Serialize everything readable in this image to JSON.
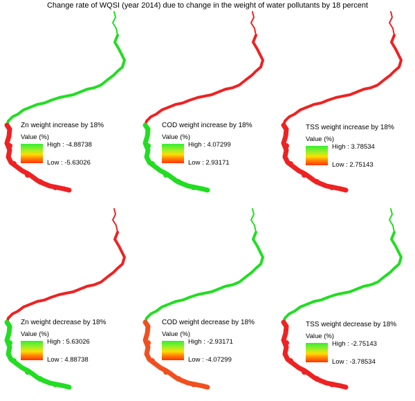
{
  "title": "Change rate of WQSI (year 2014) due to change in the weight of water pollutants by 18 percent",
  "colors": {
    "green": "#22dd22",
    "red": "#ee2222",
    "orange_red": "#f05020"
  },
  "panels": [
    {
      "legend_title": "Zn weight increase by 18%",
      "value_label": "Value (%)",
      "high": "High : -4.88738",
      "low": "Low : -5.63026",
      "north": "green",
      "south": "red",
      "gradient": "green-to-red"
    },
    {
      "legend_title": "COD weight increase by 18%",
      "value_label": "Value (%)",
      "high": "High : 4.07299",
      "low": "Low : 2.93171",
      "north": "red",
      "south": "green",
      "gradient": "green-to-red"
    },
    {
      "legend_title": "TSS weight increase by 18%",
      "value_label": "Value (%)",
      "high": "High : 3.78534",
      "low": "Low : 2.75143",
      "north": "red",
      "south": "red",
      "gradient": "green-to-red"
    },
    {
      "legend_title": "Zn weight decrease by 18%",
      "value_label": "Value (%)",
      "high": "High : 5.63026",
      "low": "Low : 4.88738",
      "north": "red",
      "south": "green",
      "gradient": "green-to-red"
    },
    {
      "legend_title": "COD weight decrease by 18%",
      "value_label": "Value (%)",
      "high": "High : -2.93171",
      "low": "Low : -4.07299",
      "north": "green",
      "south": "orange_red",
      "gradient": "green-to-red"
    },
    {
      "legend_title": "TSS weight decrease by 18%",
      "value_label": "Value (%)",
      "high": "High : -2.75143",
      "low": "Low : -3.78534",
      "north": "green",
      "south": "red",
      "gradient": "green-to-red"
    }
  ]
}
